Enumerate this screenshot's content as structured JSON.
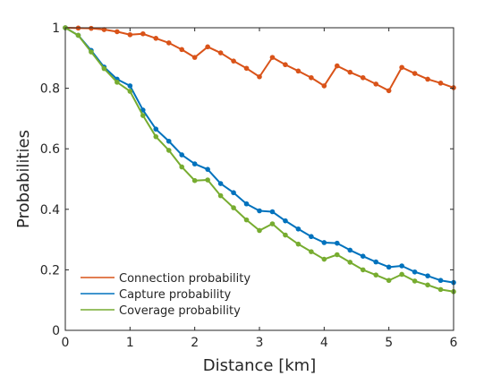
{
  "chart_data": {
    "type": "line",
    "title": "",
    "xlabel": "Distance [km]",
    "ylabel": "Probabilities",
    "xlim": [
      0,
      6
    ],
    "ylim": [
      0,
      1
    ],
    "xticks": [
      "0",
      "1",
      "2",
      "3",
      "4",
      "5",
      "6"
    ],
    "yticks": [
      "0",
      "0.2",
      "0.4",
      "0.6",
      "0.8",
      "1"
    ],
    "grid": false,
    "box": true,
    "legend_position": "bottom-left",
    "x": [
      0,
      0.2,
      0.4,
      0.6,
      0.8,
      1.0,
      1.2,
      1.4,
      1.6,
      1.8,
      2.0,
      2.2,
      2.4,
      2.6,
      2.8,
      3.0,
      3.2,
      3.4,
      3.6,
      3.8,
      4.0,
      4.2,
      4.4,
      4.6,
      4.8,
      5.0,
      5.2,
      5.4,
      5.6,
      5.8,
      6.0
    ],
    "series": [
      {
        "name": "Connection probability",
        "color": "#D95319",
        "values": [
          1.0,
          0.999,
          0.998,
          0.994,
          0.987,
          0.977,
          0.98,
          0.965,
          0.95,
          0.928,
          0.902,
          0.937,
          0.917,
          0.89,
          0.866,
          0.838,
          0.902,
          0.878,
          0.857,
          0.835,
          0.808,
          0.874,
          0.853,
          0.835,
          0.814,
          0.792,
          0.869,
          0.849,
          0.83,
          0.817,
          0.802
        ]
      },
      {
        "name": "Capture probability",
        "color": "#0072BD",
        "values": [
          1.0,
          0.975,
          0.925,
          0.87,
          0.83,
          0.808,
          0.728,
          0.665,
          0.625,
          0.58,
          0.55,
          0.532,
          0.485,
          0.455,
          0.418,
          0.395,
          0.392,
          0.362,
          0.335,
          0.31,
          0.29,
          0.288,
          0.265,
          0.245,
          0.226,
          0.209,
          0.213,
          0.193,
          0.18,
          0.165,
          0.158
        ]
      },
      {
        "name": "Coverage probability",
        "color": "#77AC30",
        "values": [
          1.0,
          0.975,
          0.92,
          0.865,
          0.82,
          0.79,
          0.71,
          0.64,
          0.595,
          0.54,
          0.495,
          0.497,
          0.445,
          0.405,
          0.365,
          0.33,
          0.352,
          0.315,
          0.285,
          0.26,
          0.235,
          0.25,
          0.225,
          0.2,
          0.183,
          0.165,
          0.185,
          0.163,
          0.15,
          0.135,
          0.128
        ]
      }
    ]
  }
}
